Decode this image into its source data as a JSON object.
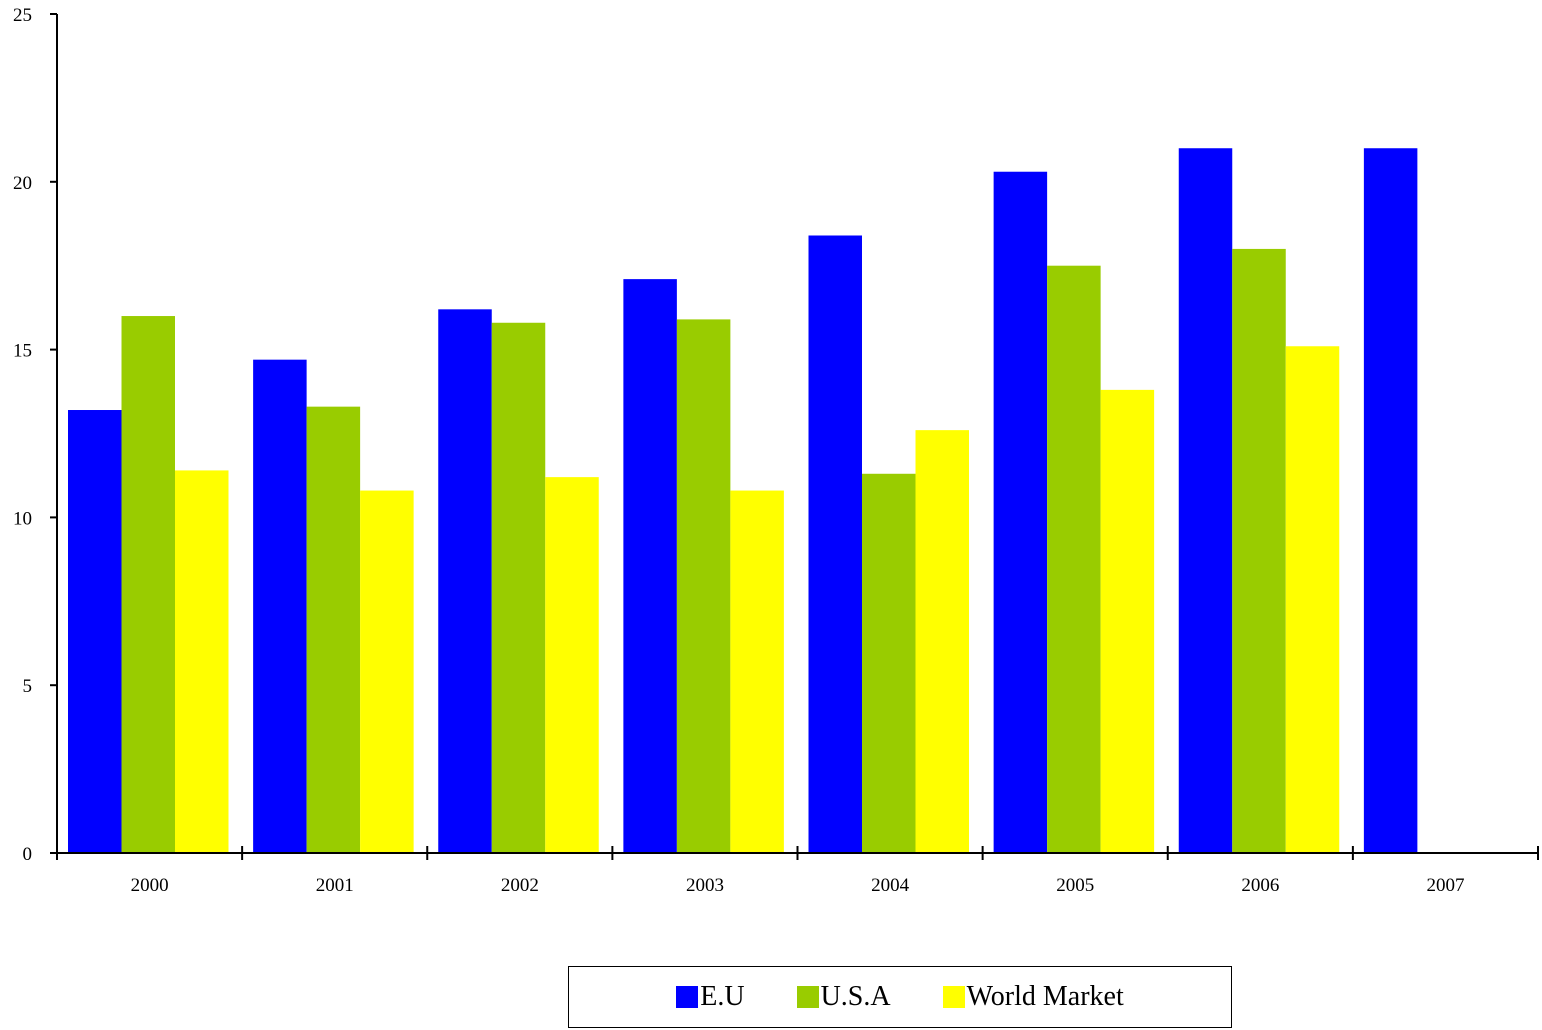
{
  "chart_data": {
    "type": "bar",
    "title": "",
    "xlabel": "",
    "ylabel": "",
    "ylim": [
      0,
      25
    ],
    "yticks": [
      0,
      5,
      10,
      15,
      20,
      25
    ],
    "categories": [
      "2000",
      "2001",
      "2002",
      "2003",
      "2004",
      "2005",
      "2006",
      "2007"
    ],
    "series": [
      {
        "name": "E.U",
        "color": "#0000ff",
        "values": [
          13.2,
          14.7,
          16.2,
          17.1,
          18.4,
          20.3,
          21.0,
          21.0
        ]
      },
      {
        "name": "U.S.A",
        "color": "#99cc00",
        "values": [
          16.0,
          13.3,
          15.8,
          15.9,
          11.3,
          17.5,
          18.0,
          null
        ]
      },
      {
        "name": "World Market",
        "color": "#ffff00",
        "values": [
          11.4,
          10.8,
          11.2,
          10.8,
          12.6,
          13.8,
          15.1,
          null
        ]
      }
    ],
    "grid": false,
    "legend_position": "bottom"
  }
}
